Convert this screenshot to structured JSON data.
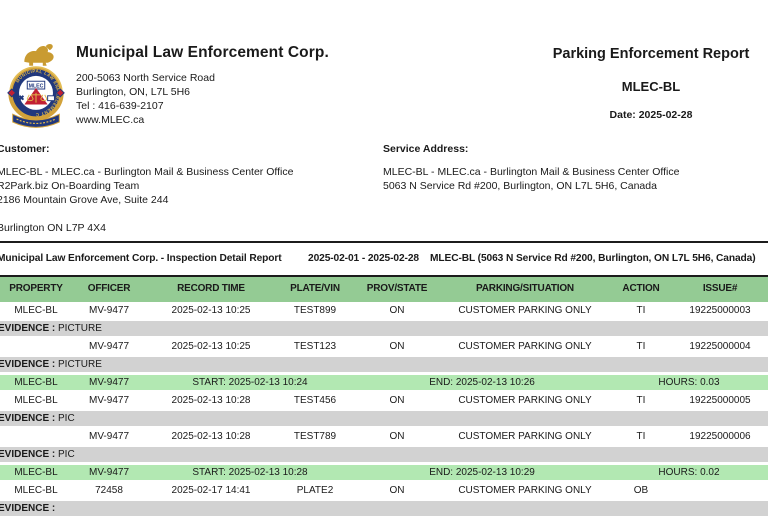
{
  "header": {
    "company_name": "Municipal Law Enforcement Corp.",
    "address_lines": [
      "200-5063 North Service Road",
      "Burlington, ON,  L7L 5H6",
      "Tel : 416-639-2107",
      "www.MLEC.ca"
    ],
    "report_title": "Parking Enforcement Report",
    "report_code": "MLEC-BL",
    "report_date": "Date: 2025-02-28",
    "logo": {
      "center_text": "MLEC",
      "ring_text": "MUNICIPAL LAW ENFORCEMENT CORP",
      "colors": {
        "gold": "#d2a23a",
        "blue": "#21387d",
        "red": "#c22033"
      }
    }
  },
  "customer": {
    "label": "Customer:",
    "lines": [
      "MLEC-BL - MLEC.ca - Burlington Mail & Business Center Office",
      "R2Park.biz On-Boarding Team",
      "2186 Mountain Grove Ave, Suite 244",
      "",
      "Burlington ON  L7P 4X4"
    ]
  },
  "service_address": {
    "label": "Service Address:",
    "lines": [
      "MLEC-BL - MLEC.ca - Burlington Mail & Business Center Office",
      "5063 N Service Rd #200, Burlington, ON L7L 5H6, Canada"
    ]
  },
  "section": {
    "title": "Municipal Law Enforcement Corp. - Inspection Detail Report",
    "date_range": "2025-02-01 - 2025-02-28",
    "location": "MLEC-BL (5063 N Service Rd #200, Burlington, ON L7L 5H6, Canada)"
  },
  "table": {
    "columns": [
      "PROPERTY",
      "OFFICER",
      "RECORD TIME",
      "PLATE/VIN",
      "PROV/STATE",
      "PARKING/SITUATION",
      "ACTION",
      "ISSUE#"
    ],
    "colors": {
      "header_bg": "#94cb94",
      "summary_bg": "#b2e8b2",
      "evidence_bg": "#d2d2d2"
    },
    "rows": [
      {
        "type": "record",
        "cells": [
          "MLEC-BL",
          "MV-9477",
          "2025-02-13 10:25",
          "TEST899",
          "ON",
          "CUSTOMER PARKING ONLY",
          "TI",
          "19225000003"
        ]
      },
      {
        "type": "evidence",
        "label": "EVIDENCE :",
        "value": "PICTURE"
      },
      {
        "type": "record",
        "cells": [
          "",
          "MV-9477",
          "2025-02-13 10:25",
          "TEST123",
          "ON",
          "CUSTOMER PARKING ONLY",
          "TI",
          "19225000004"
        ]
      },
      {
        "type": "evidence",
        "label": "EVIDENCE :",
        "value": "PICTURE"
      },
      {
        "type": "summary",
        "property": "MLEC-BL",
        "officer": "MV-9477",
        "start": "START: 2025-02-13 10:24",
        "end": "END: 2025-02-13 10:26",
        "hours": "HOURS: 0.03"
      },
      {
        "type": "record",
        "cells": [
          "MLEC-BL",
          "MV-9477",
          "2025-02-13 10:28",
          "TEST456",
          "ON",
          "CUSTOMER PARKING ONLY",
          "TI",
          "19225000005"
        ]
      },
      {
        "type": "evidence",
        "label": "EVIDENCE :",
        "value": "PIC"
      },
      {
        "type": "record",
        "cells": [
          "",
          "MV-9477",
          "2025-02-13 10:28",
          "TEST789",
          "ON",
          "CUSTOMER PARKING ONLY",
          "TI",
          "19225000006"
        ]
      },
      {
        "type": "evidence",
        "label": "EVIDENCE :",
        "value": "PIC"
      },
      {
        "type": "summary",
        "property": "MLEC-BL",
        "officer": "MV-9477",
        "start": "START: 2025-02-13 10:28",
        "end": "END: 2025-02-13 10:29",
        "hours": "HOURS: 0.02"
      },
      {
        "type": "record",
        "cells": [
          "MLEC-BL",
          "72458",
          "2025-02-17 14:41",
          "PLATE2",
          "ON",
          "CUSTOMER PARKING ONLY",
          "OB",
          ""
        ]
      },
      {
        "type": "evidence",
        "label": "EVIDENCE :",
        "value": ""
      }
    ]
  }
}
